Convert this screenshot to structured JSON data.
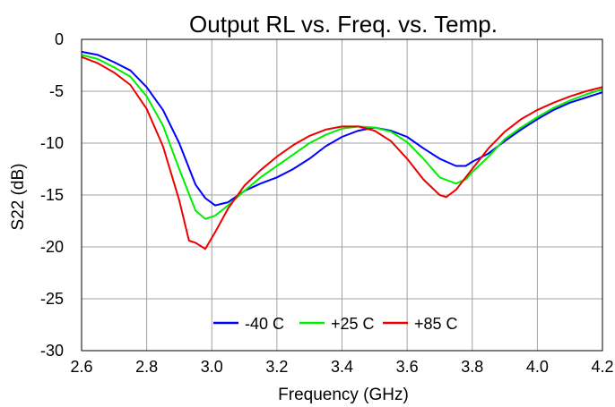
{
  "chart_data": {
    "type": "line",
    "title": "Output RL vs. Freq. vs. Temp.",
    "xlabel": "Frequency (GHz)",
    "ylabel": "S22 (dB)",
    "xlim": [
      2.6,
      4.2
    ],
    "ylim": [
      -30,
      0
    ],
    "xticks": [
      2.6,
      2.8,
      3.0,
      3.2,
      3.4,
      3.6,
      3.8,
      4.0,
      4.2
    ],
    "xtick_labels": [
      "2.6",
      "2.8",
      "3.0",
      "3.2",
      "3.4",
      "3.6",
      "3.8",
      "4.0",
      "4.2"
    ],
    "yticks": [
      0,
      -5,
      -10,
      -15,
      -20,
      -25,
      -30
    ],
    "ytick_labels": [
      "0",
      "-5",
      "-10",
      "-15",
      "-20",
      "-25",
      "-30"
    ],
    "grid": true,
    "legend_position": "bottom-center",
    "series": [
      {
        "name": "-40 C",
        "color": "#0000ff",
        "x": [
          2.6,
          2.65,
          2.7,
          2.75,
          2.8,
          2.85,
          2.9,
          2.95,
          2.98,
          3.01,
          3.05,
          3.1,
          3.15,
          3.2,
          3.25,
          3.3,
          3.35,
          3.4,
          3.45,
          3.5,
          3.55,
          3.6,
          3.65,
          3.7,
          3.75,
          3.78,
          3.8,
          3.85,
          3.9,
          3.95,
          4.0,
          4.05,
          4.1,
          4.15,
          4.2
        ],
        "y": [
          -1.2,
          -1.5,
          -2.2,
          -3.0,
          -4.6,
          -6.8,
          -10.0,
          -14.0,
          -15.3,
          -16.0,
          -15.7,
          -14.6,
          -13.9,
          -13.3,
          -12.5,
          -11.5,
          -10.3,
          -9.4,
          -8.8,
          -8.5,
          -8.8,
          -9.4,
          -10.5,
          -11.5,
          -12.2,
          -12.2,
          -11.8,
          -11.0,
          -9.8,
          -8.7,
          -7.7,
          -6.8,
          -6.1,
          -5.6,
          -5.1
        ]
      },
      {
        "name": "+25 C",
        "color": "#00ee00",
        "x": [
          2.6,
          2.65,
          2.7,
          2.75,
          2.8,
          2.85,
          2.9,
          2.95,
          2.98,
          3.01,
          3.05,
          3.1,
          3.15,
          3.2,
          3.25,
          3.3,
          3.35,
          3.4,
          3.45,
          3.5,
          3.55,
          3.6,
          3.65,
          3.7,
          3.75,
          3.78,
          3.8,
          3.85,
          3.9,
          3.95,
          4.0,
          4.05,
          4.1,
          4.15,
          4.2
        ],
        "y": [
          -1.5,
          -1.9,
          -2.7,
          -3.6,
          -5.5,
          -8.3,
          -12.5,
          -16.5,
          -17.3,
          -17.0,
          -16.0,
          -14.6,
          -13.3,
          -12.2,
          -11.1,
          -10.0,
          -9.2,
          -8.6,
          -8.4,
          -8.5,
          -8.9,
          -9.9,
          -11.5,
          -13.3,
          -13.9,
          -13.5,
          -12.8,
          -11.3,
          -9.6,
          -8.5,
          -7.5,
          -6.6,
          -5.9,
          -5.3,
          -4.8
        ]
      },
      {
        "name": "+85 C",
        "color": "#ee0000",
        "x": [
          2.6,
          2.65,
          2.7,
          2.75,
          2.8,
          2.85,
          2.9,
          2.93,
          2.95,
          2.98,
          3.01,
          3.05,
          3.1,
          3.15,
          3.2,
          3.25,
          3.3,
          3.35,
          3.4,
          3.45,
          3.5,
          3.55,
          3.6,
          3.65,
          3.7,
          3.72,
          3.75,
          3.8,
          3.85,
          3.9,
          3.95,
          4.0,
          4.05,
          4.1,
          4.15,
          4.2
        ],
        "y": [
          -1.7,
          -2.3,
          -3.2,
          -4.4,
          -6.7,
          -10.3,
          -15.5,
          -19.4,
          -19.6,
          -20.2,
          -18.6,
          -16.3,
          -14.1,
          -12.6,
          -11.3,
          -10.2,
          -9.3,
          -8.7,
          -8.4,
          -8.4,
          -8.8,
          -9.8,
          -11.5,
          -13.5,
          -15.0,
          -15.2,
          -14.5,
          -12.5,
          -10.5,
          -8.9,
          -7.7,
          -6.8,
          -6.1,
          -5.5,
          -5.0,
          -4.6
        ]
      }
    ]
  }
}
